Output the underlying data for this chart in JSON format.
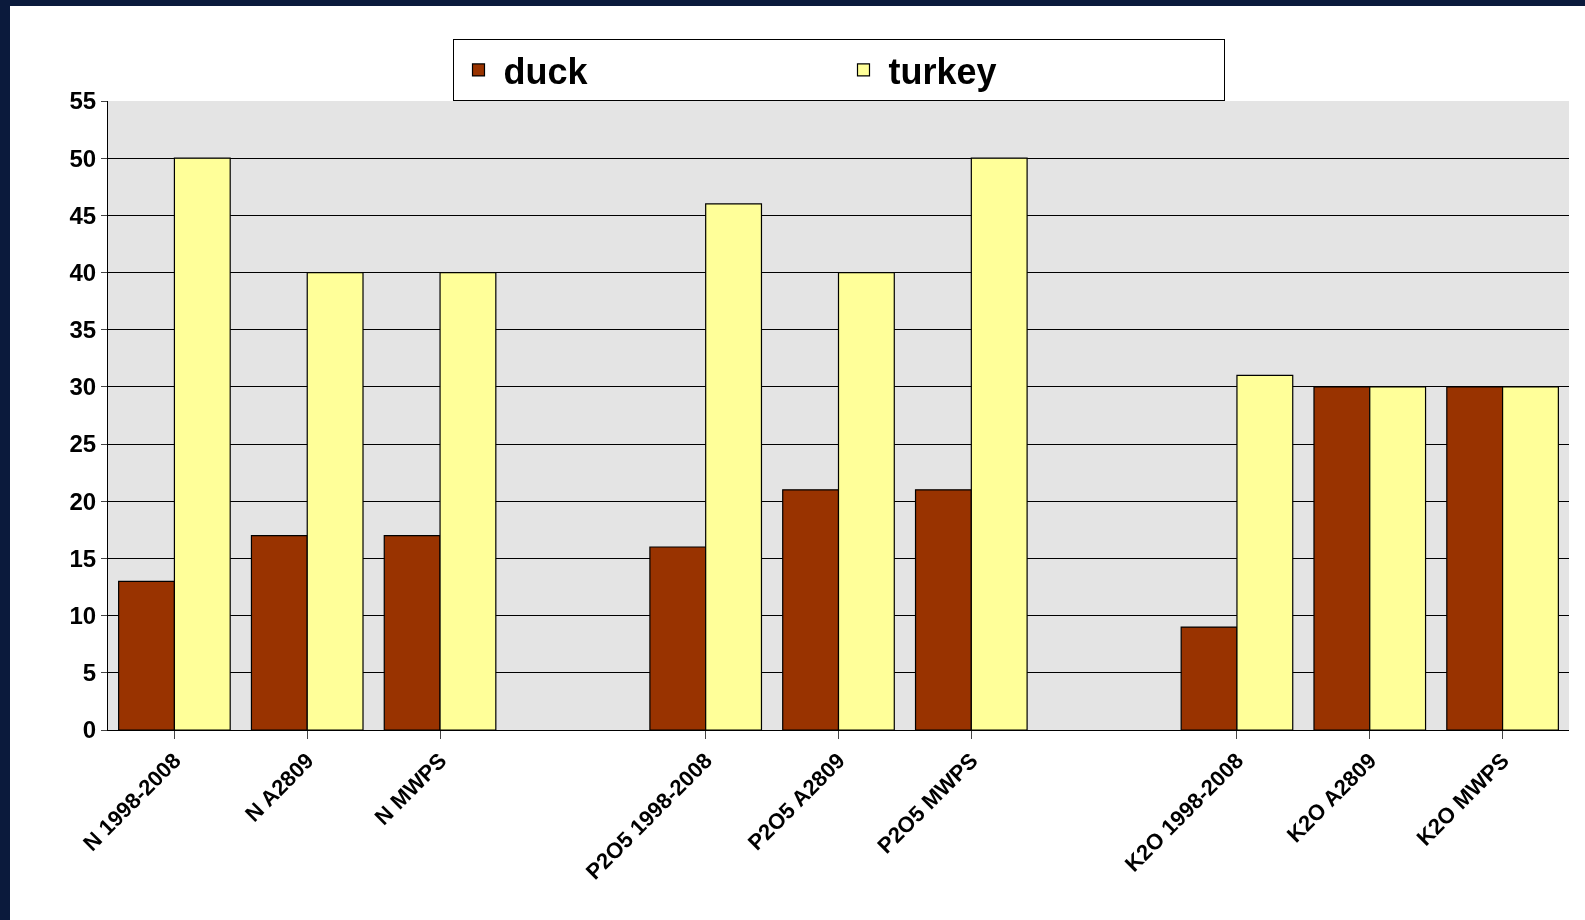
{
  "chart_data": {
    "type": "bar",
    "categories": [
      "N 1998-2008",
      "N A2809",
      "N MWPS",
      null,
      "P2O5 1998-2008",
      "P2O5 A2809",
      "P2O5 MWPS",
      null,
      "K2O 1998-2008",
      "K2O A2809",
      "K2O MWPS"
    ],
    "series": [
      {
        "name": "duck",
        "color": "#993300",
        "values": [
          13,
          17,
          17,
          null,
          16,
          21,
          21,
          null,
          9,
          30,
          30
        ]
      },
      {
        "name": "turkey",
        "color": "#ffff99",
        "values": [
          50,
          40,
          40,
          null,
          46,
          40,
          50,
          null,
          31,
          30,
          30
        ]
      }
    ],
    "ylim": [
      0,
      55
    ],
    "yticks": [
      0,
      5,
      10,
      15,
      20,
      25,
      30,
      35,
      40,
      45,
      50,
      55
    ],
    "grid": "y",
    "legend": "top"
  }
}
